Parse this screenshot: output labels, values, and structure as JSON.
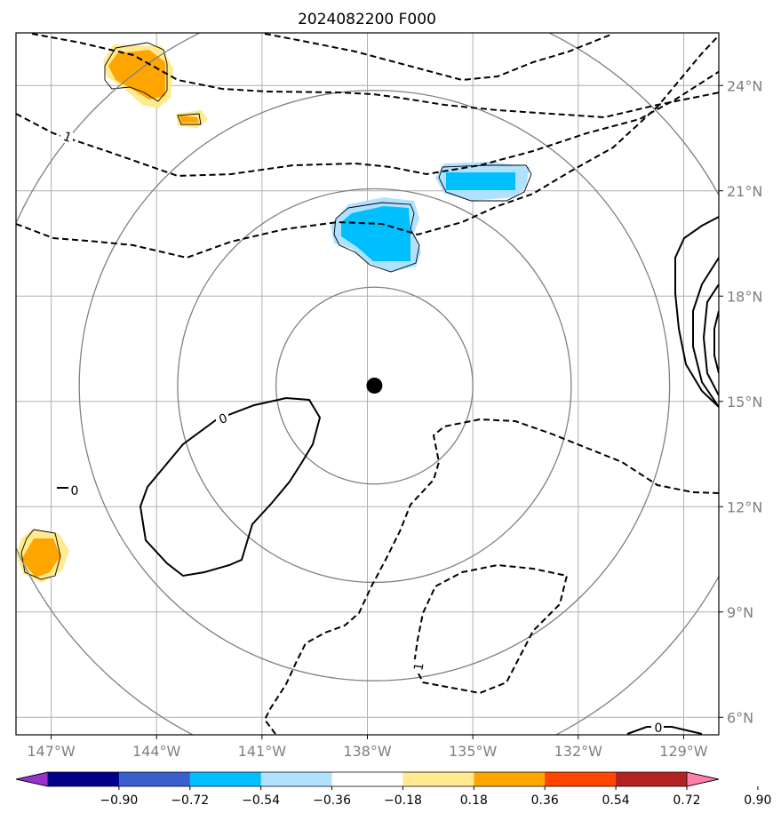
{
  "chart_data": {
    "type": "map-contour",
    "title": "2024082200 F000",
    "x_ticks": [
      "147°W",
      "144°W",
      "141°W",
      "138°W",
      "135°W",
      "132°W",
      "129°W"
    ],
    "y_ticks": [
      "6°N",
      "9°N",
      "12°N",
      "15°N",
      "18°N",
      "21°N",
      "24°N"
    ],
    "x_tick_values": [
      -147,
      -144,
      -141,
      -138,
      -135,
      -132,
      -129
    ],
    "y_tick_values": [
      6,
      9,
      12,
      15,
      18,
      21,
      24
    ],
    "lon_range": [
      -148,
      -128
    ],
    "lat_range": [
      5.5,
      25.5
    ],
    "grid": true,
    "center": {
      "lon": -137.8,
      "lat": 15.45
    },
    "range_rings_deg": [
      2.8,
      5.6,
      8.4,
      11.2
    ],
    "contour_labels": [
      "0",
      "1",
      "0",
      "1",
      "0"
    ],
    "colorbar": {
      "orientation": "horizontal",
      "extend": "both",
      "tick_labels": [
        "−0.90",
        "−0.72",
        "−0.54",
        "−0.36",
        "−0.18",
        "0.18",
        "0.36",
        "0.54",
        "0.72",
        "0.90"
      ],
      "colors": [
        "#9932cc",
        "#00008b",
        "#3a5fcd",
        "#00bfff",
        "#b0e2ff",
        "#ffffff",
        "#ffea8f",
        "#ffa500",
        "#ff4500",
        "#b22222",
        "#ff7faa"
      ]
    },
    "colors": {
      "positive_light": "#ffea8f",
      "positive_mid": "#ffa500",
      "negative_light": "#b0e2ff",
      "negative_mid": "#00bfff",
      "grid": "#b0b0b0",
      "ring": "#808080"
    }
  }
}
